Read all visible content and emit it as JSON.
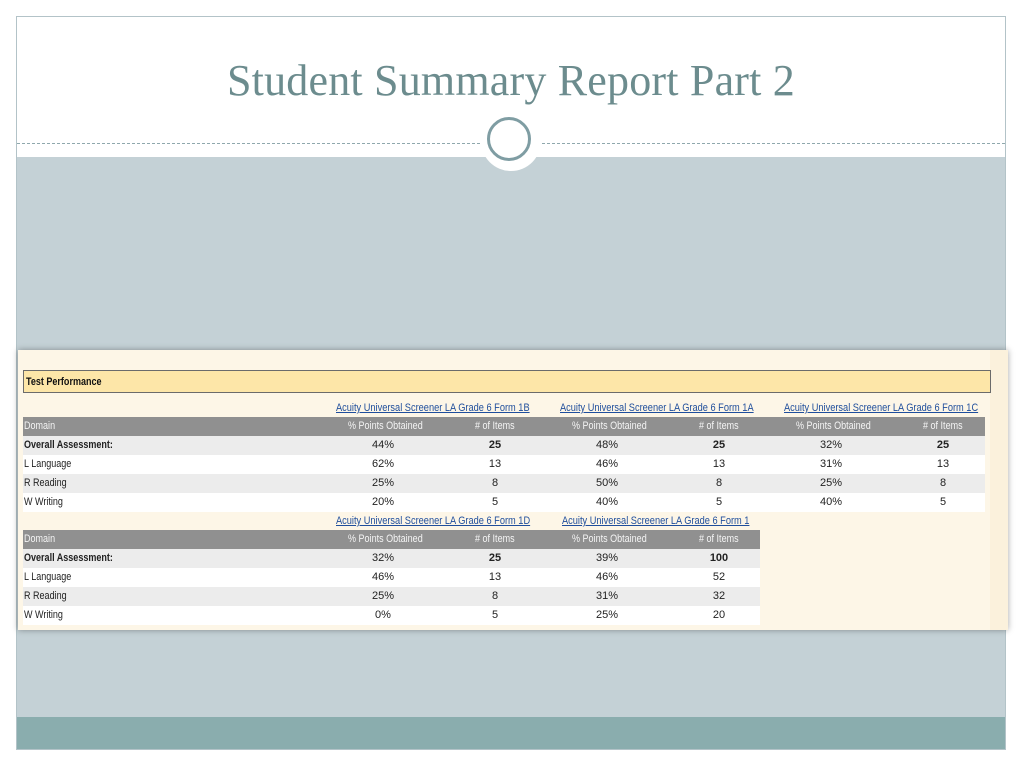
{
  "slide": {
    "title": "Student Summary Report  Part 2"
  },
  "report": {
    "section_title": "Test Performance",
    "domain_header": "Domain",
    "col_points": "% Points Obtained",
    "col_items": "# of Items",
    "table1": {
      "forms": [
        "Acuity Universal Screener LA Grade 6 Form 1B",
        "Acuity Universal Screener LA Grade 6 Form 1A",
        "Acuity Universal Screener LA Grade 6 Form 1C"
      ],
      "rows": [
        {
          "domain": "Overall Assessment:",
          "v": [
            "44%",
            "25",
            "48%",
            "25",
            "32%",
            "25"
          ]
        },
        {
          "domain": "L Language",
          "v": [
            "62%",
            "13",
            "46%",
            "13",
            "31%",
            "13"
          ]
        },
        {
          "domain": "R Reading",
          "v": [
            "25%",
            "8",
            "50%",
            "8",
            "25%",
            "8"
          ]
        },
        {
          "domain": "W Writing",
          "v": [
            "20%",
            "5",
            "40%",
            "5",
            "40%",
            "5"
          ]
        }
      ]
    },
    "table2": {
      "forms": [
        "Acuity Universal Screener LA Grade 6 Form 1D",
        "Acuity Universal Screener LA Grade 6 Form 1"
      ],
      "rows": [
        {
          "domain": "Overall Assessment:",
          "v": [
            "32%",
            "25",
            "39%",
            "100"
          ]
        },
        {
          "domain": "L Language",
          "v": [
            "46%",
            "13",
            "46%",
            "52"
          ]
        },
        {
          "domain": "R Reading",
          "v": [
            "25%",
            "8",
            "31%",
            "32"
          ]
        },
        {
          "domain": "W Writing",
          "v": [
            "0%",
            "5",
            "25%",
            "20"
          ]
        }
      ]
    }
  },
  "colors": {
    "title": "#6c8c8e",
    "content_band": "#c4d1d6",
    "footer_band": "#8aadae",
    "section_header": "#fde6a8",
    "column_header": "#909090",
    "link": "#1f4e9c"
  }
}
